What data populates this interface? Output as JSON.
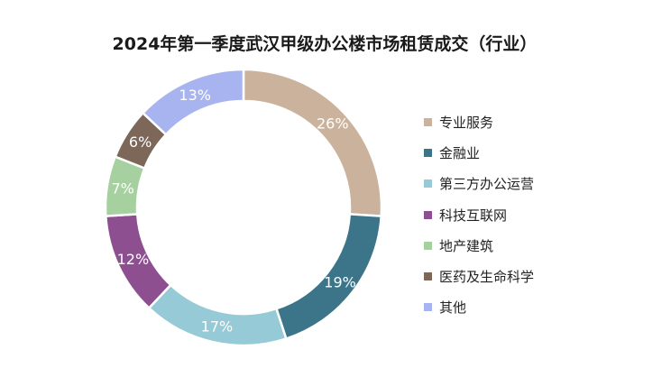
{
  "chart_data": {
    "type": "pie",
    "title": "2024年第一季度武汉甲级办公楼市场租赁成交（行业）",
    "donut": true,
    "legend_position": "right",
    "slices": [
      {
        "label": "专业服务",
        "value": 26,
        "display": "26%",
        "color": "#cbb29c"
      },
      {
        "label": "金融业",
        "value": 19,
        "display": "19%",
        "color": "#3c7589"
      },
      {
        "label": "第三方办公运营",
        "value": 17,
        "display": "17%",
        "color": "#95cad6"
      },
      {
        "label": "科技互联网",
        "value": 12,
        "display": "12%",
        "color": "#8e4f91"
      },
      {
        "label": "地产建筑",
        "value": 7,
        "display": "7%",
        "color": "#a6d0a0"
      },
      {
        "label": "医药及生命科学",
        "value": 6,
        "display": "6%",
        "color": "#7c6759"
      },
      {
        "label": "其他",
        "value": 13,
        "display": "13%",
        "color": "#a7b4ef"
      }
    ]
  }
}
